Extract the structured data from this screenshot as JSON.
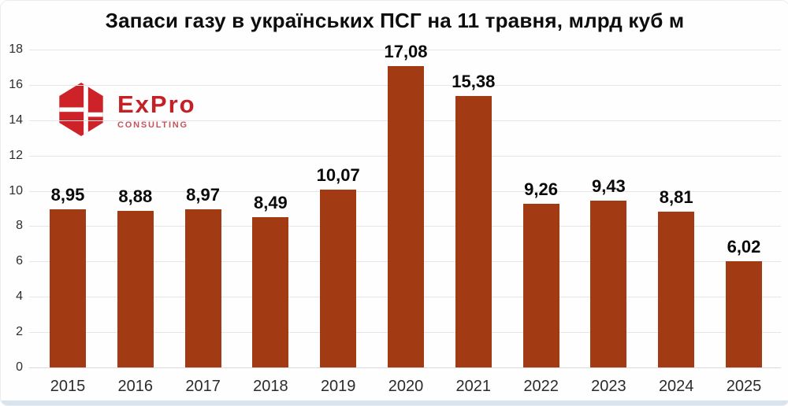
{
  "title": "Запаси газу в українських ПСГ на 11 травня, млрд куб м",
  "logo": {
    "brand": "ExPro",
    "subtitle": "CONSULTING",
    "brand_color": "#c42127",
    "subtitle_color": "#c4555c",
    "hexagon_color": "#ce2229"
  },
  "colors": {
    "bar": "#a23a13",
    "grid": "#e5e5e9",
    "baseline": "#d9d9de",
    "axis_text": "#2e2e2e",
    "value_text": "#0a0a0a",
    "bottom_strip": "#d7e3ef"
  },
  "chart_data": {
    "type": "bar",
    "title": "Запаси газу в українських ПСГ на 11 травня, млрд куб м",
    "categories": [
      "2015",
      "2016",
      "2017",
      "2018",
      "2019",
      "2020",
      "2021",
      "2022",
      "2023",
      "2024",
      "2025"
    ],
    "values": [
      8.95,
      8.88,
      8.97,
      8.49,
      10.07,
      17.08,
      15.38,
      9.26,
      9.43,
      8.81,
      6.02
    ],
    "value_labels": [
      "8,95",
      "8,88",
      "8,97",
      "8,49",
      "10,07",
      "17,08",
      "15,38",
      "9,26",
      "9,43",
      "8,81",
      "6,02"
    ],
    "xlabel": "",
    "ylabel": "",
    "ylim": [
      0,
      18
    ],
    "yticks": [
      0,
      2,
      4,
      6,
      8,
      10,
      12,
      14,
      16,
      18
    ],
    "grid": true,
    "legend": false,
    "bar_color": "#a23a13"
  }
}
